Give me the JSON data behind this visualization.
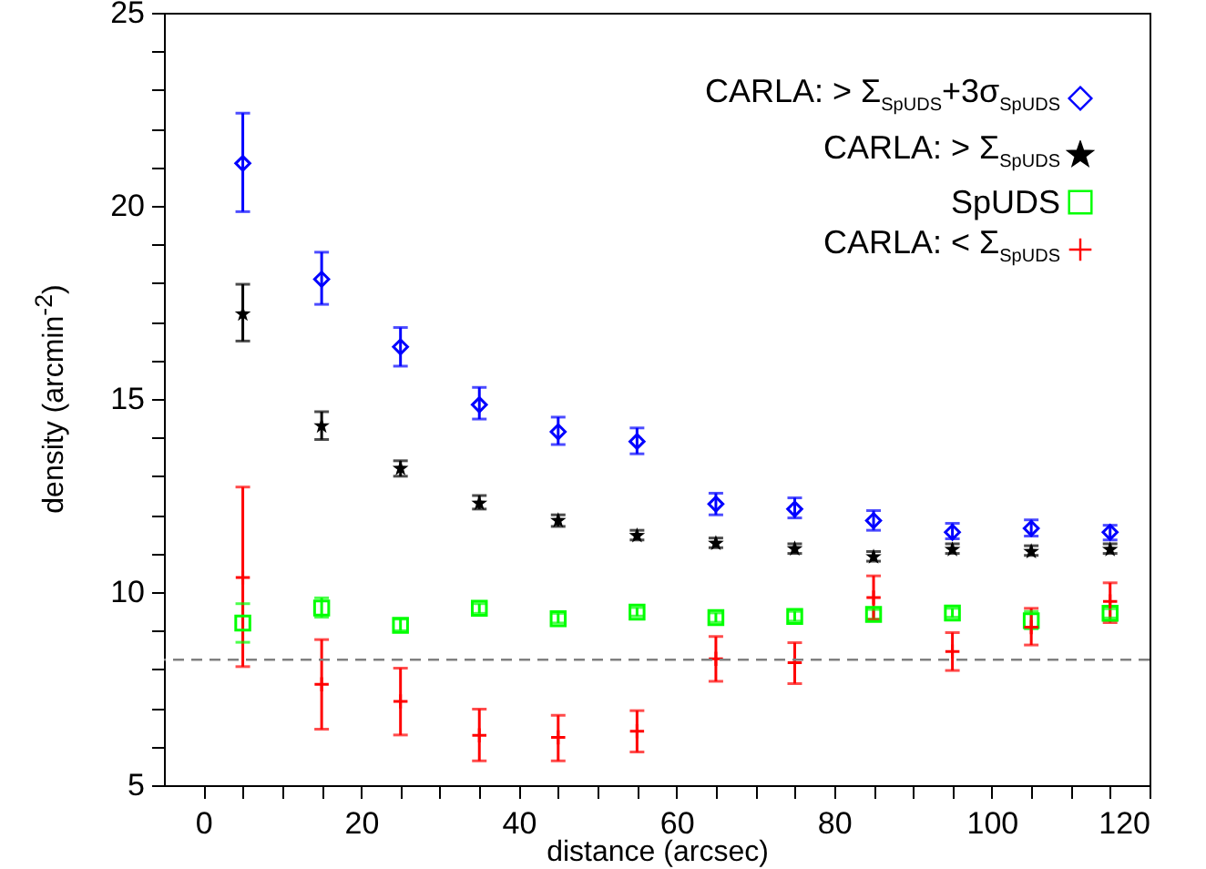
{
  "chart_data": {
    "type": "scatter",
    "xlabel": "distance (arcsec)",
    "ylabel": "density (arcmin$^{-2}$)",
    "x": [
      5,
      15,
      25,
      35,
      45,
      55,
      65,
      75,
      85,
      95,
      105,
      115
    ],
    "xlim": [
      -5,
      120
    ],
    "ylim": [
      5,
      25
    ],
    "xticks": [
      0,
      {
        "value": 5,
        "label": null
      },
      {
        "value": 10,
        "label": null
      },
      {
        "value": 15,
        "label": null
      },
      20,
      {
        "value": 25,
        "label": null
      },
      {
        "value": 30,
        "label": null
      },
      {
        "value": 35,
        "label": null
      },
      40,
      {
        "value": 45,
        "label": null
      },
      {
        "value": 50,
        "label": null
      },
      {
        "value": 55,
        "label": null
      },
      60,
      {
        "value": 65,
        "label": null
      },
      {
        "value": 70,
        "label": null
      },
      {
        "value": 75,
        "label": null
      },
      80,
      {
        "value": 85,
        "label": null
      },
      {
        "value": 90,
        "label": null
      },
      {
        "value": 95,
        "label": null
      },
      100,
      {
        "value": 105,
        "label": null
      },
      {
        "value": 110,
        "label": null
      },
      {
        "value": 115,
        "label": null
      },
      120
    ],
    "yticks": [
      5,
      {
        "value": 6,
        "label": null
      },
      {
        "value": 7,
        "label": null
      },
      {
        "value": 8,
        "label": null
      },
      {
        "value": 9,
        "label": null
      },
      10,
      {
        "value": 11,
        "label": null
      },
      {
        "value": 12,
        "label": null
      },
      {
        "value": 13,
        "label": null
      },
      {
        "value": 14,
        "label": null
      },
      15,
      {
        "value": 16,
        "label": null
      },
      {
        "value": 17,
        "label": null
      },
      {
        "value": 18,
        "label": null
      },
      {
        "value": 19,
        "label": null
      },
      20,
      {
        "value": 21,
        "label": null
      },
      {
        "value": 22,
        "label": null
      },
      {
        "value": 23,
        "label": null
      },
      {
        "value": 24,
        "label": null
      },
      25
    ],
    "legend": "top right",
    "grid": false,
    "ref_lines": [
      {
        "axis": "y",
        "value": 8.25,
        "color": "#808080",
        "line_style": "dashed"
      }
    ],
    "series": [
      {
        "name": "CARLA: > Σ$_{SpUDS}$+3σ$_{SpUDS}$",
        "color": "#0000ff",
        "marker": "diamond",
        "values": [
          21.1,
          18.1,
          16.35,
          14.85,
          14.15,
          13.9,
          12.28,
          12.15,
          11.85,
          11.55,
          11.65,
          11.55
        ],
        "errors": [
          [
            19.85,
            22.4
          ],
          [
            17.45,
            18.8
          ],
          [
            15.85,
            16.85
          ],
          [
            14.48,
            15.3
          ],
          [
            13.82,
            14.53
          ],
          [
            13.58,
            14.25
          ],
          [
            12.0,
            12.56
          ],
          [
            11.92,
            12.44
          ],
          [
            11.6,
            12.11
          ],
          [
            11.38,
            11.78
          ],
          [
            11.45,
            11.87
          ],
          [
            11.35,
            11.73
          ]
        ]
      },
      {
        "name": "CARLA: > Σ$_{SpUDS}$",
        "color": "#000000",
        "marker": "star",
        "values": [
          17.2,
          14.3,
          13.2,
          12.3,
          11.85,
          11.46,
          11.26,
          11.12,
          10.91,
          11.1,
          11.05,
          11.1
        ],
        "errors": [
          [
            16.5,
            17.97
          ],
          [
            13.95,
            14.67
          ],
          [
            13.0,
            13.4
          ],
          [
            12.15,
            12.5
          ],
          [
            11.7,
            12.0
          ],
          [
            11.35,
            11.6
          ],
          [
            11.15,
            11.4
          ],
          [
            11.0,
            11.25
          ],
          [
            10.8,
            11.05
          ],
          [
            11.0,
            11.25
          ],
          [
            10.95,
            11.2
          ],
          [
            11.0,
            11.25
          ]
        ]
      },
      {
        "name": "SpUDS",
        "color": "#00ff00",
        "marker": "square",
        "values": [
          9.2,
          9.59,
          9.14,
          9.58,
          9.31,
          9.48,
          9.34,
          9.37,
          9.42,
          9.46,
          9.26,
          9.45
        ],
        "errors": [
          [
            8.7,
            9.7
          ],
          [
            9.35,
            9.85
          ],
          [
            9.0,
            9.3
          ],
          [
            9.45,
            9.7
          ],
          [
            9.2,
            9.45
          ],
          [
            9.38,
            9.6
          ],
          [
            9.22,
            9.46
          ],
          [
            9.25,
            9.5
          ],
          [
            9.3,
            9.55
          ],
          [
            9.35,
            9.58
          ],
          [
            9.05,
            9.5
          ],
          [
            9.33,
            9.57
          ]
        ]
      },
      {
        "name": "CARLA: < Σ$_{SpUDS}$",
        "color": "#ff0000",
        "marker": "cross",
        "values": [
          10.38,
          7.61,
          7.17,
          6.29,
          6.24,
          6.4,
          8.27,
          8.17,
          9.86,
          8.46,
          9.09,
          9.76
        ],
        "errors": [
          [
            8.07,
            12.72
          ],
          [
            6.45,
            8.77
          ],
          [
            6.3,
            8.03
          ],
          [
            5.63,
            6.97
          ],
          [
            5.63,
            6.81
          ],
          [
            5.86,
            6.93
          ],
          [
            7.69,
            8.85
          ],
          [
            7.63,
            8.69
          ],
          [
            9.29,
            10.42
          ],
          [
            7.97,
            8.95
          ],
          [
            8.63,
            9.58
          ],
          [
            9.21,
            10.24
          ]
        ]
      }
    ]
  }
}
